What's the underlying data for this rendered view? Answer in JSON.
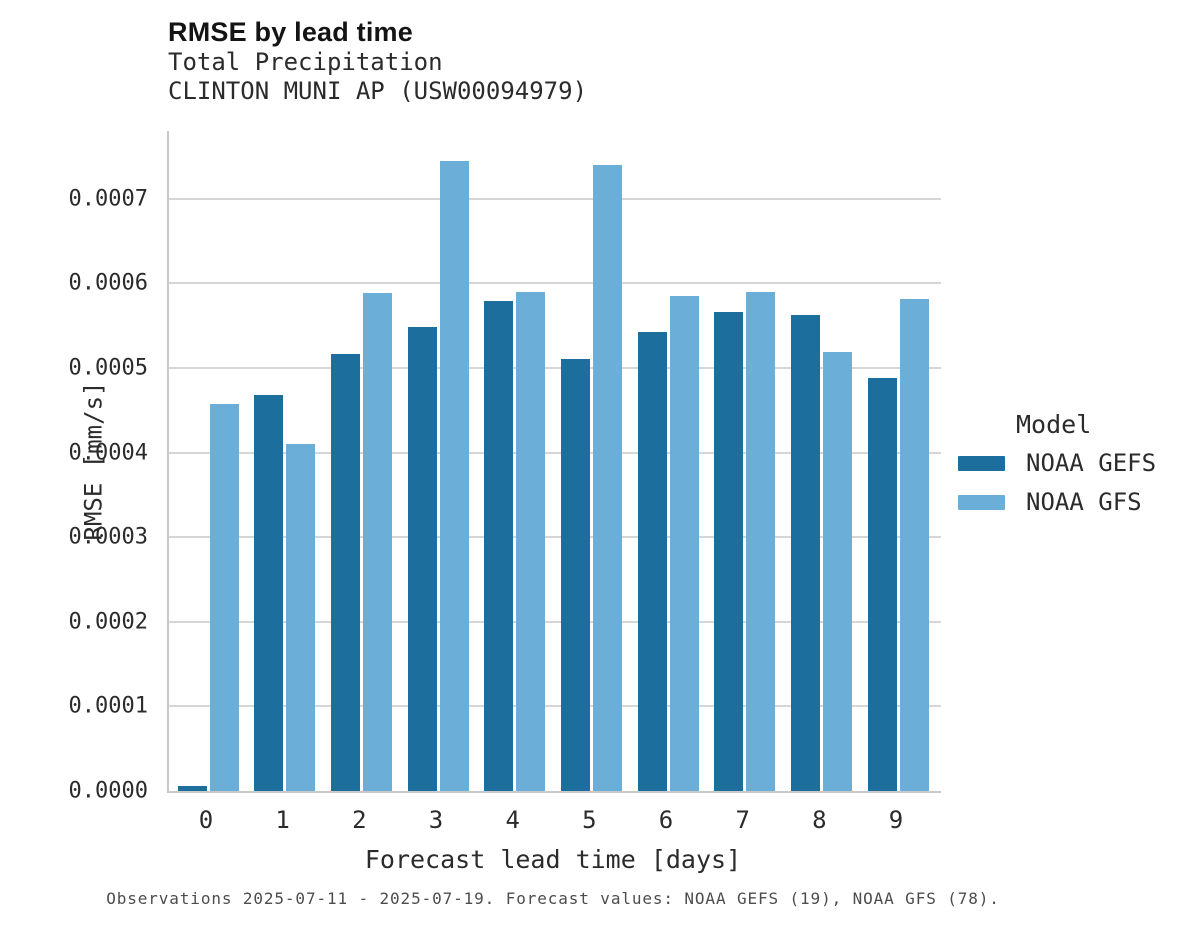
{
  "title": "RMSE by lead time",
  "subtitle_line1": "Total Precipitation",
  "subtitle_line2": "CLINTON MUNI AP (USW00094979)",
  "footer_note": "Observations 2025-07-11 - 2025-07-19. Forecast values: NOAA GEFS (19), NOAA GFS (78).",
  "colors": {
    "noaa_gefs": "#1c6e9c",
    "noaa_gfs": "#6bafd8",
    "gridline": "#d6d6d6",
    "axis_spine": "#c9c9c9",
    "text": "#2b2b2b",
    "footer_text": "#4d4d4d"
  },
  "legend": {
    "title": "Model",
    "entries": [
      {
        "label": "NOAA GEFS",
        "color": "#1c6e9c"
      },
      {
        "label": "NOAA GFS",
        "color": "#6bafd8"
      }
    ]
  },
  "chart_data": {
    "type": "bar",
    "title": "RMSE by lead time",
    "subtitle": [
      "Total Precipitation",
      "CLINTON MUNI AP (USW00094979)"
    ],
    "xlabel": "Forecast lead time [days]",
    "ylabel": "RMSE [mm/s]",
    "categories": [
      "0",
      "1",
      "2",
      "3",
      "4",
      "5",
      "6",
      "7",
      "8",
      "9"
    ],
    "series": [
      {
        "name": "NOAA GEFS",
        "color": "#1c6e9c",
        "values": [
          6e-06,
          0.000468,
          0.000516,
          0.000548,
          0.000579,
          0.000511,
          0.000543,
          0.000566,
          0.000562,
          0.000488
        ]
      },
      {
        "name": "NOAA GFS",
        "color": "#6bafd8",
        "values": [
          0.000457,
          0.00041,
          0.000588,
          0.000744,
          0.00059,
          0.00074,
          0.000585,
          0.00059,
          0.000519,
          0.000581
        ]
      }
    ],
    "ylim": [
      0,
      0.00078
    ],
    "yticks": [
      0.0,
      0.0001,
      0.0002,
      0.0003,
      0.0004,
      0.0005,
      0.0006,
      0.0007
    ],
    "ytick_labels": [
      "0.0000",
      "0.0001",
      "0.0002",
      "0.0003",
      "0.0004",
      "0.0005",
      "0.0006",
      "0.0007"
    ],
    "grid": true,
    "legend_title": "Model",
    "legend_position": "right"
  }
}
